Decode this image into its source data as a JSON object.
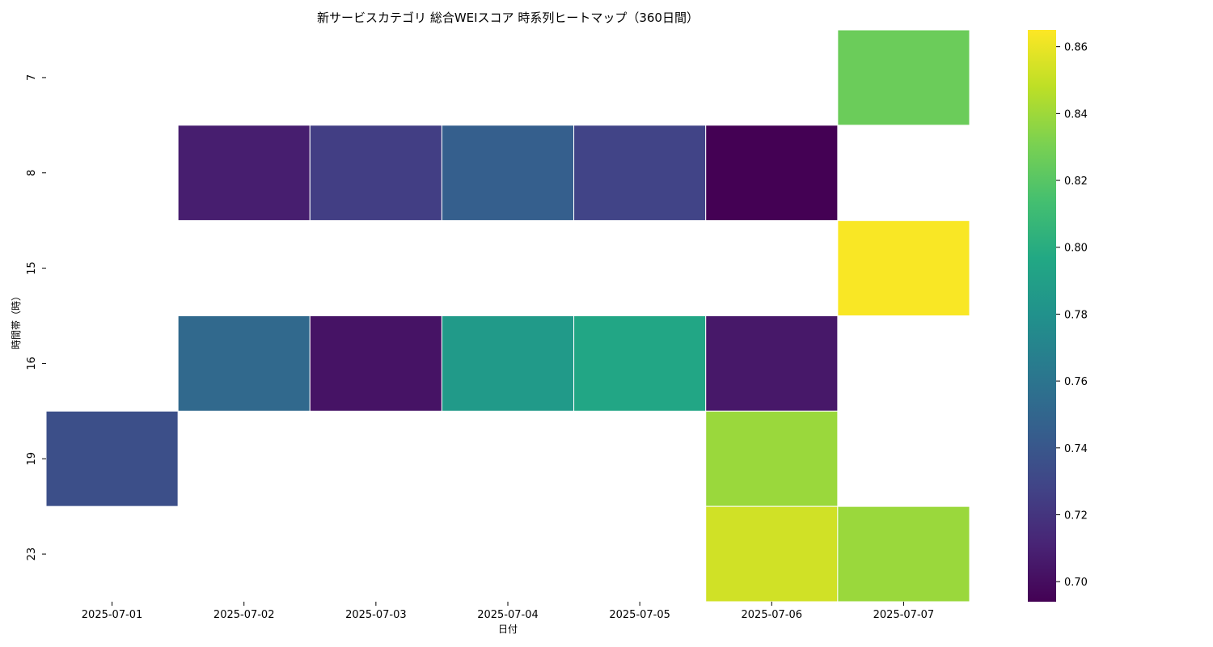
{
  "chart_data": {
    "type": "heatmap",
    "title": "新サービスカテゴリ 総合WEIスコア 時系列ヒートマップ（360日間）",
    "xlabel": "日付",
    "ylabel": "時間帯（時）",
    "x_categories": [
      "2025-07-01",
      "2025-07-02",
      "2025-07-03",
      "2025-07-04",
      "2025-07-05",
      "2025-07-06",
      "2025-07-07"
    ],
    "y_categories": [
      "7",
      "8",
      "15",
      "16",
      "19",
      "23"
    ],
    "values": [
      [
        null,
        null,
        null,
        null,
        null,
        null,
        0.826
      ],
      [
        null,
        0.708,
        0.725,
        0.745,
        0.728,
        0.694,
        null
      ],
      [
        null,
        null,
        null,
        null,
        null,
        null,
        0.864
      ],
      [
        null,
        0.752,
        0.703,
        0.786,
        0.795,
        0.705,
        null
      ],
      [
        0.735,
        null,
        null,
        null,
        null,
        0.839,
        null
      ],
      [
        null,
        null,
        null,
        null,
        null,
        0.853,
        0.839
      ]
    ],
    "colormap": "viridis",
    "vmin": 0.694,
    "vmax": 0.865,
    "colorbar_ticks": [
      "0.70",
      "0.72",
      "0.74",
      "0.76",
      "0.78",
      "0.80",
      "0.82",
      "0.84",
      "0.86"
    ]
  }
}
